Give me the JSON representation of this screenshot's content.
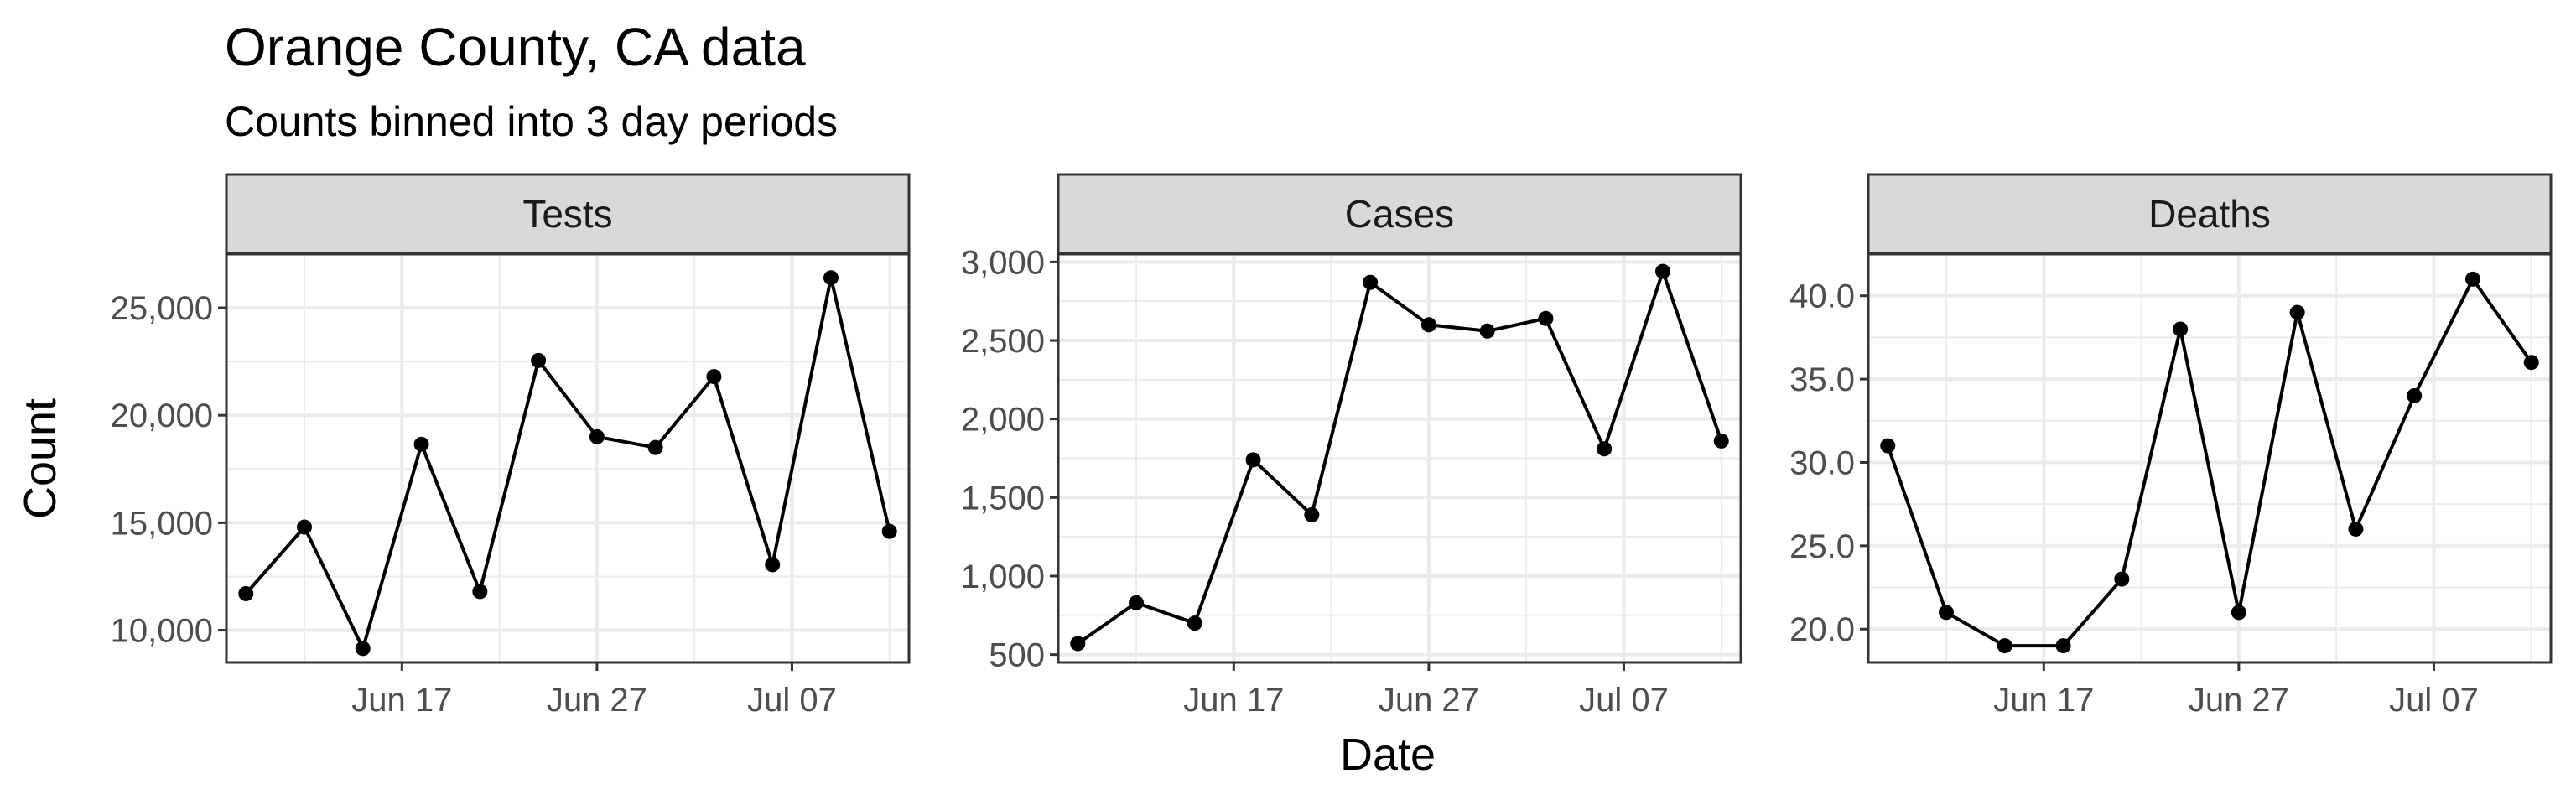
{
  "title": "Orange County, CA data",
  "subtitle": "Counts binned into 3 day periods",
  "xlabel": "Date",
  "ylabel": "Count",
  "colors": {
    "line": "#000000",
    "strip_bg": "#d9d9d9",
    "grid": "#ebebeb",
    "panel_border": "#333333"
  },
  "chart_data": {
    "type": "line",
    "facets": [
      "Tests",
      "Cases",
      "Deaths"
    ],
    "x": [
      "2020-06-09",
      "2020-06-12",
      "2020-06-15",
      "2020-06-18",
      "2020-06-21",
      "2020-06-24",
      "2020-06-27",
      "2020-06-30",
      "2020-07-03",
      "2020-07-06",
      "2020-07-09",
      "2020-07-12"
    ],
    "x_ticks": [
      {
        "date": "2020-06-17",
        "label": "Jun 17"
      },
      {
        "date": "2020-06-27",
        "label": "Jun 27"
      },
      {
        "date": "2020-07-07",
        "label": "Jul 07"
      }
    ],
    "xlim": [
      "2020-06-08",
      "2020-07-13"
    ],
    "grid": true,
    "panels": [
      {
        "label": "Tests",
        "values": [
          11700,
          14800,
          9150,
          18650,
          11800,
          22550,
          19000,
          18500,
          21800,
          13050,
          26400,
          14600
        ],
        "ylim": [
          8500,
          27500
        ],
        "yticks": [
          10000,
          15000,
          20000,
          25000
        ],
        "ytick_labels": [
          "10,000",
          "15,000",
          "20,000",
          "25,000"
        ],
        "yminor": [
          12500,
          17500,
          22500
        ]
      },
      {
        "label": "Cases",
        "values": [
          570,
          830,
          700,
          1740,
          1390,
          2870,
          2600,
          2560,
          2640,
          1810,
          2940,
          1860
        ],
        "ylim": [
          450,
          3050
        ],
        "yticks": [
          500,
          1000,
          1500,
          2000,
          2500,
          3000
        ],
        "ytick_labels": [
          "500",
          "1,000",
          "1,500",
          "2,000",
          "2,500",
          "3,000"
        ],
        "yminor": [
          750,
          1250,
          1750,
          2250,
          2750
        ]
      },
      {
        "label": "Deaths",
        "values": [
          31,
          21,
          19,
          19,
          23,
          38,
          21,
          39,
          26,
          34,
          41,
          36
        ],
        "ylim": [
          18.0,
          42.5
        ],
        "yticks": [
          20,
          25,
          30,
          35,
          40
        ],
        "ytick_labels": [
          "20.0",
          "25.0",
          "30.0",
          "35.0",
          "40.0"
        ],
        "yminor": [
          22.5,
          27.5,
          32.5,
          37.5
        ]
      }
    ]
  }
}
